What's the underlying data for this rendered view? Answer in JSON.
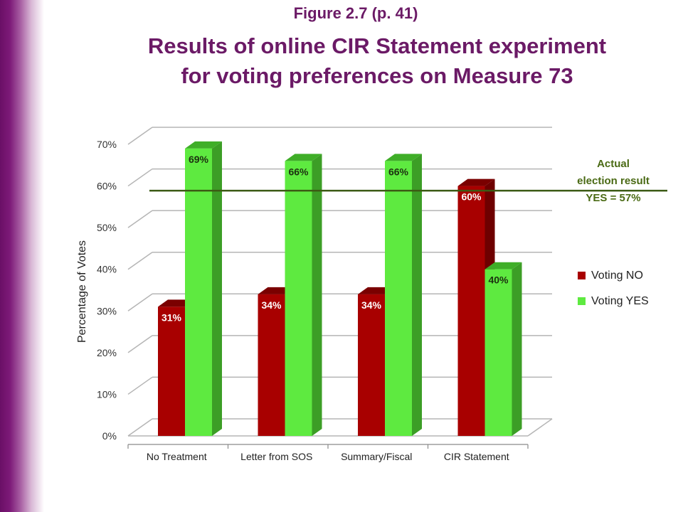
{
  "figure_label": "Figure 2.7 (p. 41)",
  "title_line1": "Results of online CIR Statement experiment",
  "title_line2": "for voting preferences on Measure 73",
  "colors": {
    "title": "#6b1a66",
    "no_front": "#a80000",
    "no_top": "#7a0000",
    "no_side": "#6e0000",
    "yes_front": "#5eea40",
    "yes_top": "#3fae28",
    "yes_side": "#3c9e26",
    "reference_line": "#3c5a14",
    "annotation": "#4a6a14"
  },
  "chart_data": {
    "type": "bar",
    "categories": [
      "No Treatment",
      "Letter from SOS",
      "Summary/Fiscal",
      "CIR Statement"
    ],
    "series": [
      {
        "name": "Voting NO",
        "values": [
          31,
          34,
          34,
          60
        ],
        "labels": [
          "31%",
          "34%",
          "34%",
          "60%"
        ]
      },
      {
        "name": "Voting YES",
        "values": [
          69,
          66,
          66,
          40
        ],
        "labels": [
          "69%",
          "66%",
          "66%",
          "40%"
        ]
      }
    ],
    "ylabel": "Percentage of Votes",
    "xlabel": "",
    "ylim": [
      0,
      70
    ],
    "yticks": [
      0,
      10,
      20,
      30,
      40,
      50,
      60,
      70
    ],
    "ytick_labels": [
      "0%",
      "10%",
      "20%",
      "30%",
      "40%",
      "50%",
      "60%",
      "70%"
    ],
    "grid": true,
    "legend_position": "right",
    "reference_line": {
      "value": 57,
      "annotation": [
        "Actual",
        "election result",
        "YES = 57%"
      ]
    }
  }
}
